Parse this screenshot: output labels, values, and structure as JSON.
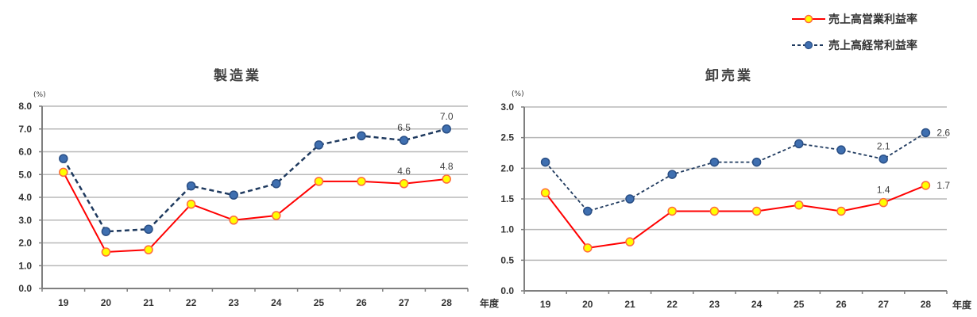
{
  "colors": {
    "operating_line": "#ff0000",
    "operating_marker_fill": "#ffff00",
    "operating_marker_stroke": "#ff6a3d",
    "ordinary_line": "#1f3a5f",
    "ordinary_marker_fill": "#3f6fb0",
    "ordinary_marker_stroke": "#2a4f85",
    "grid": "#b8b8b8",
    "axis": "#7f7f7f"
  },
  "legend": {
    "items": [
      {
        "label": "売上高営業利益率",
        "style": "solid"
      },
      {
        "label": "売上高経常利益率",
        "style": "dashed"
      }
    ]
  },
  "chart_data": [
    {
      "type": "line",
      "title": "製造業",
      "unit_label": "(%)",
      "x_unit_label": "年度",
      "categories": [
        "19",
        "20",
        "21",
        "22",
        "23",
        "24",
        "25",
        "26",
        "27",
        "28"
      ],
      "ylim": [
        0,
        8
      ],
      "yticks": [
        "0.0",
        "1.0",
        "2.0",
        "3.0",
        "4.0",
        "5.0",
        "6.0",
        "7.0",
        "8.0"
      ],
      "grid": true,
      "series": [
        {
          "name": "売上高営業利益率",
          "values": [
            5.1,
            1.6,
            1.7,
            3.7,
            3.0,
            3.2,
            4.7,
            4.7,
            4.6,
            4.8
          ]
        },
        {
          "name": "売上高経常利益率",
          "values": [
            5.7,
            2.5,
            2.6,
            4.5,
            4.1,
            4.6,
            6.3,
            6.7,
            6.5,
            7.0
          ]
        }
      ],
      "annotations": [
        {
          "series": 0,
          "index": 8,
          "text": "4.6"
        },
        {
          "series": 0,
          "index": 9,
          "text": "4.8"
        },
        {
          "series": 1,
          "index": 8,
          "text": "6.5"
        },
        {
          "series": 1,
          "index": 9,
          "text": "7.0"
        }
      ]
    },
    {
      "type": "line",
      "title": "卸売業",
      "unit_label": "(%)",
      "x_unit_label": "年度",
      "categories": [
        "19",
        "20",
        "21",
        "22",
        "23",
        "24",
        "25",
        "26",
        "27",
        "28"
      ],
      "ylim": [
        0,
        3
      ],
      "yticks": [
        "0.0",
        "0.5",
        "1.0",
        "1.5",
        "2.0",
        "2.5",
        "3.0"
      ],
      "grid": true,
      "series": [
        {
          "name": "売上高営業利益率",
          "values": [
            1.6,
            0.7,
            0.8,
            1.3,
            1.3,
            1.3,
            1.4,
            1.3,
            1.44,
            1.72
          ]
        },
        {
          "name": "売上高経常利益率",
          "values": [
            2.1,
            1.3,
            1.5,
            1.9,
            2.1,
            2.1,
            2.4,
            2.3,
            2.15,
            2.58
          ]
        }
      ],
      "annotations": [
        {
          "series": 0,
          "index": 8,
          "text": "1.4"
        },
        {
          "series": 0,
          "index": 9,
          "text": "1.7"
        },
        {
          "series": 1,
          "index": 8,
          "text": "2.1"
        },
        {
          "series": 1,
          "index": 9,
          "text": "2.6"
        }
      ]
    }
  ]
}
